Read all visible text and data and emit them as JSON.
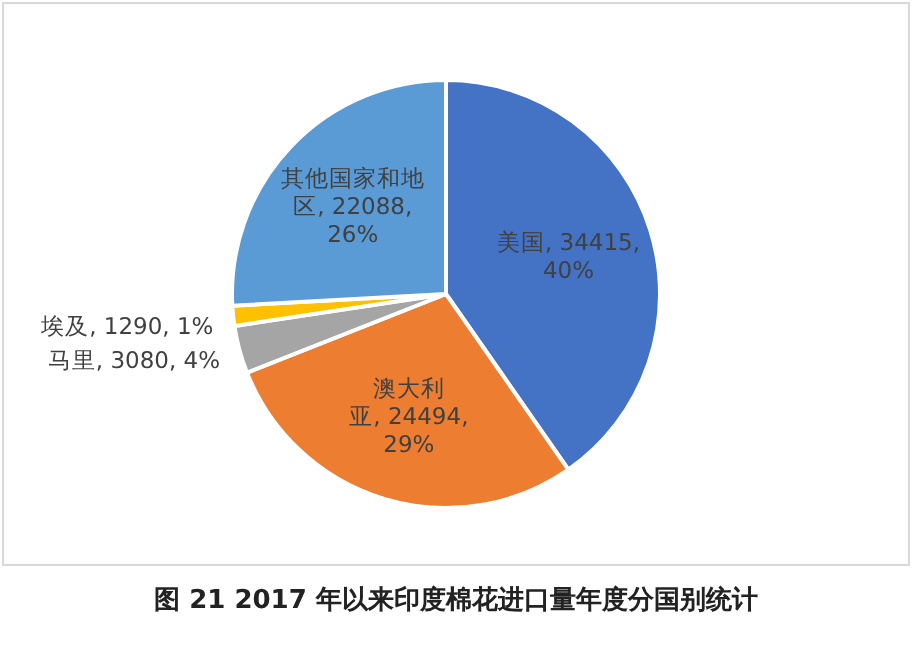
{
  "chart_data": {
    "type": "pie",
    "title": "图 21 2017 年以来印度棉花进口量年度分国别统计",
    "categories": [
      "美国",
      "澳大利亚",
      "马里",
      "埃及",
      "其他国家和地区"
    ],
    "values": [
      34415,
      24494,
      3080,
      1290,
      22088
    ],
    "value_labels": [
      "34415, 40%",
      "24494, 29%",
      "3080, 4%",
      "1290, 1%",
      "22088, 26%"
    ],
    "colors": [
      "#4472c4",
      "#ed7d31",
      "#a5a5a5",
      "#ffc000",
      "#5b9bd5"
    ]
  }
}
